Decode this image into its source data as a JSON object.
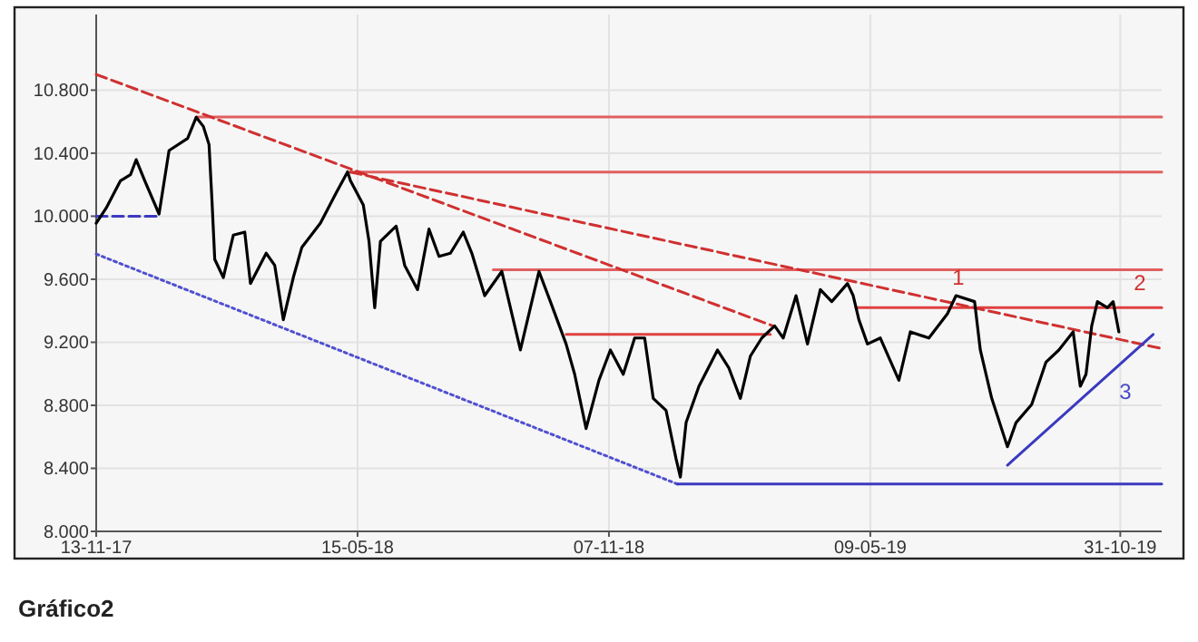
{
  "chart_data": {
    "type": "line",
    "annotations": [
      "Gráfico2",
      "1",
      "2",
      "3"
    ],
    "xlim": [
      "2017-11-13",
      "2019-11-29"
    ],
    "xticks": [
      {
        "value": "2017-11-13",
        "label": "13-11-17"
      },
      {
        "value": "2018-05-15",
        "label": "15-05-18"
      },
      {
        "value": "2018-11-07",
        "label": "07-11-18"
      },
      {
        "value": "2019-05-09",
        "label": "09-05-19"
      },
      {
        "value": "2019-10-31",
        "label": "31-10-19"
      }
    ],
    "ylim": [
      8000,
      11280
    ],
    "yticks": [
      {
        "value": 8000,
        "label": "8.000"
      },
      {
        "value": 8400,
        "label": "8.400"
      },
      {
        "value": 8800,
        "label": "8.800"
      },
      {
        "value": 9200,
        "label": "9.200"
      },
      {
        "value": 9600,
        "label": "9.600"
      },
      {
        "value": 10000,
        "label": "10.000"
      },
      {
        "value": 10400,
        "label": "10.400"
      },
      {
        "value": 10800,
        "label": "10.800"
      }
    ],
    "grid": true,
    "series": [
      {
        "color": "#e06060",
        "line_style": "solid",
        "x": [
          "2018-01-22",
          "2019-11-29"
        ],
        "values": [
          10630,
          10630
        ]
      },
      {
        "color": "#e06060",
        "line_style": "solid",
        "x": [
          "2018-05-10",
          "2019-11-29"
        ],
        "values": [
          10280,
          10280
        ]
      },
      {
        "color": "#e06060",
        "line_style": "solid",
        "x": [
          "2018-08-18",
          "2019-11-29"
        ],
        "values": [
          9660,
          9660
        ]
      },
      {
        "color": "#e04040",
        "line_style": "solid",
        "x": [
          "2018-10-08",
          "2019-02-28"
        ],
        "values": [
          9250,
          9250
        ]
      },
      {
        "color": "#e04040",
        "line_style": "solid",
        "x": [
          "2019-04-29",
          "2019-11-29"
        ],
        "values": [
          9420,
          9420
        ]
      },
      {
        "color": "#d03030",
        "line_style": "dashed",
        "x": [
          "2017-11-13",
          "2019-03-03"
        ],
        "values": [
          10900,
          9300
        ]
      },
      {
        "color": "#d03030",
        "line_style": "dashed",
        "x": [
          "2018-05-10",
          "2019-11-29"
        ],
        "values": [
          10280,
          9160
        ]
      },
      {
        "color": "#3a3ac0",
        "line_style": "dashed",
        "x": [
          "2017-11-13",
          "2017-12-27"
        ],
        "values": [
          10000,
          10000
        ]
      },
      {
        "color": "#5050d0",
        "line_style": "dotted",
        "x": [
          "2017-11-13",
          "2018-12-25"
        ],
        "values": [
          9760,
          8300
        ]
      },
      {
        "color": "#3a3ac0",
        "line_style": "solid",
        "x": [
          "2018-12-25",
          "2019-11-29"
        ],
        "values": [
          8300,
          8300
        ]
      },
      {
        "color": "#3a3ac0",
        "line_style": "solid",
        "x": [
          "2019-08-13",
          "2019-11-23"
        ],
        "values": [
          8420,
          9250
        ]
      },
      {
        "color": "#000000",
        "line_style": "solid",
        "x": [
          "2017-11-13",
          "2017-11-20",
          "2017-11-30",
          "2017-12-07",
          "2017-12-11",
          "2017-12-17",
          "2017-12-27",
          "2018-01-03",
          "2018-01-16",
          "2018-01-22",
          "2018-01-27",
          "2018-01-31",
          "2018-02-02",
          "2018-02-04",
          "2018-02-10",
          "2018-02-17",
          "2018-02-25",
          "2018-03-01",
          "2018-03-12",
          "2018-03-18",
          "2018-03-24",
          "2018-03-31",
          "2018-04-06",
          "2018-04-19",
          "2018-04-30",
          "2018-05-08",
          "2018-05-10",
          "2018-05-19",
          "2018-05-23",
          "2018-05-27",
          "2018-05-31",
          "2018-06-11",
          "2018-06-17",
          "2018-06-26",
          "2018-07-04",
          "2018-07-11",
          "2018-07-19",
          "2018-07-28",
          "2018-08-03",
          "2018-08-12",
          "2018-08-24",
          "2018-09-06",
          "2018-09-19",
          "2018-09-27",
          "2018-10-08",
          "2018-10-14",
          "2018-10-22",
          "2018-10-31",
          "2018-11-08",
          "2018-11-17",
          "2018-11-25",
          "2018-12-02",
          "2018-12-08",
          "2018-12-17",
          "2018-12-24",
          "2018-12-27",
          "2018-12-31",
          "2019-01-09",
          "2019-01-22",
          "2019-01-30",
          "2019-02-07",
          "2019-02-14",
          "2019-02-22",
          "2019-03-03",
          "2019-03-09",
          "2019-03-18",
          "2019-03-26",
          "2019-04-04",
          "2019-04-12",
          "2019-04-23",
          "2019-04-27",
          "2019-05-01",
          "2019-05-07",
          "2019-05-16",
          "2019-05-29",
          "2019-06-06",
          "2019-06-19",
          "2019-07-02",
          "2019-07-08",
          "2019-07-21",
          "2019-07-25",
          "2019-08-02",
          "2019-08-13",
          "2019-08-19",
          "2019-08-30",
          "2019-09-09",
          "2019-09-18",
          "2019-09-28",
          "2019-10-03",
          "2019-10-07",
          "2019-10-11",
          "2019-10-15",
          "2019-10-22",
          "2019-10-26",
          "2019-10-30"
        ],
        "values": [
          9956,
          10052,
          10225,
          10263,
          10359,
          10225,
          10014,
          10417,
          10494,
          10628,
          10570,
          10455,
          10110,
          9726,
          9611,
          9880,
          9899,
          9573,
          9765,
          9688,
          9343,
          9611,
          9803,
          9956,
          10148,
          10282,
          10225,
          10071,
          9841,
          9419,
          9841,
          9937,
          9688,
          9534,
          9918,
          9745,
          9765,
          9899,
          9765,
          9496,
          9650,
          9151,
          9650,
          9458,
          9189,
          8997,
          8652,
          8959,
          9151,
          8997,
          9227,
          9227,
          8844,
          8767,
          8460,
          8345,
          8690,
          8921,
          9151,
          9036,
          8844,
          9112,
          9227,
          9304,
          9227,
          9496,
          9189,
          9534,
          9458,
          9573,
          9496,
          9343,
          9189,
          9227,
          8959,
          9266,
          9227,
          9381,
          9496,
          9458,
          9151,
          8844,
          8537,
          8690,
          8806,
          9074,
          9151,
          9266,
          8921,
          8997,
          9304,
          9458,
          9419,
          9458,
          9266
        ]
      }
    ]
  }
}
